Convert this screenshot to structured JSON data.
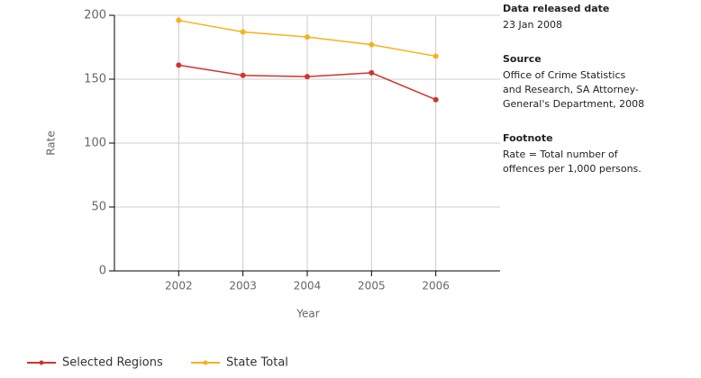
{
  "chart_data": {
    "type": "line",
    "x_label": "Year",
    "y_label": "Rate",
    "x": [
      2002,
      2003,
      2004,
      2005,
      2006
    ],
    "xlim": [
      2001,
      2007
    ],
    "xticks": [
      2002,
      2003,
      2004,
      2005,
      2006
    ],
    "ylim": [
      0,
      200
    ],
    "yticks": [
      0,
      50,
      100,
      150,
      200
    ],
    "grid": true,
    "legend": "bottom",
    "series": [
      {
        "name": "Selected Regions",
        "color": "#d0342c",
        "values": [
          161,
          153,
          152,
          155,
          134
        ]
      },
      {
        "name": "State Total",
        "color": "#f5b21a",
        "values": [
          196,
          187,
          183,
          177,
          168
        ]
      }
    ]
  },
  "info": [
    {
      "heading": "Data released date",
      "lines": [
        "23 Jan 2008"
      ]
    },
    {
      "heading": "Source",
      "lines": [
        "Office of Crime Statistics",
        "and Research, SA Attorney-",
        "General's Department, 2008"
      ]
    },
    {
      "heading": "Footnote",
      "lines": [
        "Rate = Total number of",
        "offences per 1,000 persons."
      ]
    }
  ]
}
